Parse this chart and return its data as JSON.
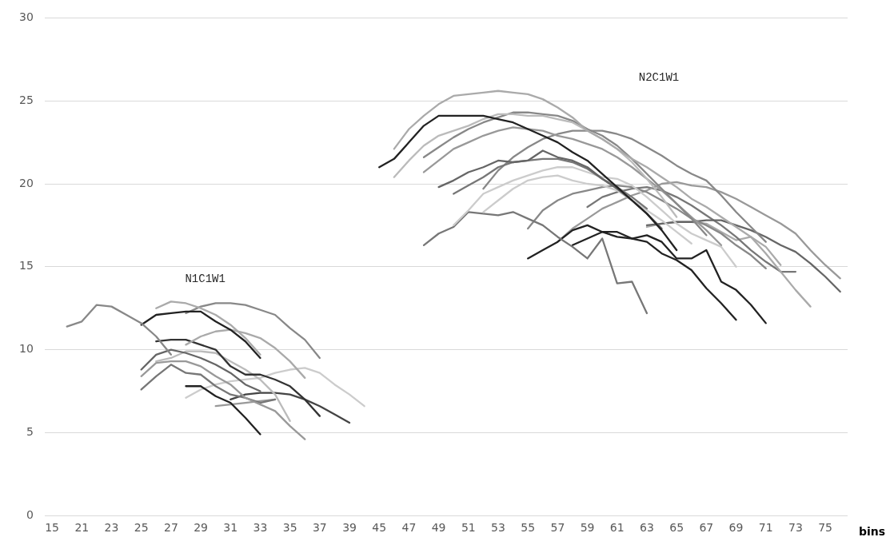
{
  "chart_data": {
    "type": "line",
    "xlabel": "bins",
    "categories": [
      "15",
      null,
      "21",
      null,
      "23",
      null,
      "25",
      null,
      "27",
      null,
      "29",
      null,
      "31",
      null,
      "33",
      null,
      "35",
      null,
      "37",
      null,
      "39",
      null,
      "45",
      null,
      "47",
      null,
      "49",
      null,
      "51",
      null,
      "53",
      null,
      "55",
      null,
      "57",
      null,
      "59",
      null,
      "61",
      null,
      "63",
      null,
      "65",
      null,
      "67",
      null,
      "69",
      null,
      "71",
      null,
      "73",
      null,
      "75",
      null
    ],
    "ylim": [
      0,
      30
    ],
    "yticks": [
      0,
      5,
      10,
      15,
      20,
      25,
      30
    ],
    "grid": "y",
    "marker": "none",
    "annotations": [
      "N1C1W1",
      "N2C1W1"
    ],
    "series": [
      {
        "color": "#888888",
        "values": [
          null,
          11.4,
          11.7,
          12.7,
          12.6,
          12.1,
          11.6,
          10.8,
          9.7,
          null,
          null,
          null,
          null,
          null,
          null,
          null,
          null,
          null,
          null,
          null,
          null,
          null,
          null,
          null,
          null,
          null,
          null,
          null,
          null,
          null,
          null,
          null,
          null,
          null,
          null,
          null,
          null,
          null,
          null,
          null,
          null,
          null,
          null,
          null,
          null,
          null,
          null,
          null,
          null,
          null,
          null,
          null,
          null,
          null
        ]
      },
      {
        "color": "#222222",
        "values": [
          null,
          null,
          null,
          null,
          null,
          null,
          11.5,
          12.1,
          12.2,
          12.3,
          12.3,
          11.7,
          11.2,
          10.5,
          9.5,
          null,
          null,
          null,
          null,
          null,
          null,
          null,
          null,
          null,
          null,
          null,
          null,
          null,
          null,
          null,
          null,
          null,
          null,
          null,
          null,
          null,
          null,
          null,
          null,
          null,
          null,
          null,
          null,
          null,
          null,
          null,
          null,
          null,
          null,
          null,
          null,
          null,
          null,
          null
        ]
      },
      {
        "color": "#aaaaaa",
        "values": [
          null,
          null,
          null,
          null,
          null,
          null,
          null,
          12.5,
          12.9,
          12.8,
          12.5,
          12.1,
          11.5,
          10.7,
          9.7,
          null,
          null,
          null,
          null,
          null,
          null,
          null,
          null,
          null,
          null,
          null,
          null,
          null,
          null,
          null,
          null,
          null,
          null,
          null,
          null,
          null,
          null,
          null,
          null,
          null,
          null,
          null,
          null,
          null,
          null,
          null,
          null,
          null,
          null,
          null,
          null,
          null,
          null,
          null
        ]
      },
      {
        "color": "#888888",
        "values": [
          null,
          null,
          null,
          null,
          null,
          null,
          null,
          null,
          null,
          12.2,
          12.6,
          12.8,
          12.8,
          12.7,
          12.4,
          12.1,
          11.3,
          10.6,
          9.5,
          null,
          null,
          null,
          null,
          null,
          null,
          null,
          null,
          null,
          null,
          null,
          null,
          null,
          null,
          null,
          null,
          null,
          null,
          null,
          null,
          null,
          null,
          null,
          null,
          null,
          null,
          null,
          null,
          null,
          null,
          null,
          null,
          null,
          null,
          null
        ]
      },
      {
        "color": "#aaaaaa",
        "values": [
          null,
          null,
          null,
          null,
          null,
          null,
          null,
          null,
          null,
          10.3,
          10.8,
          11.1,
          11.2,
          11.0,
          10.7,
          10.1,
          9.3,
          8.3,
          null,
          null,
          null,
          null,
          null,
          null,
          null,
          null,
          null,
          null,
          null,
          null,
          null,
          null,
          null,
          null,
          null,
          null,
          null,
          null,
          null,
          null,
          null,
          null,
          null,
          null,
          null,
          null,
          null,
          null,
          null,
          null,
          null,
          null,
          null,
          null
        ]
      },
      {
        "color": "#333333",
        "values": [
          null,
          null,
          null,
          null,
          null,
          null,
          null,
          10.5,
          10.6,
          10.6,
          10.3,
          10.0,
          9.0,
          8.5,
          8.5,
          8.2,
          7.8,
          7.0,
          6.0,
          null,
          null,
          null,
          null,
          null,
          null,
          null,
          null,
          null,
          null,
          null,
          null,
          null,
          null,
          null,
          null,
          null,
          null,
          null,
          null,
          null,
          null,
          null,
          null,
          null,
          null,
          null,
          null,
          null,
          null,
          null,
          null,
          null,
          null,
          null
        ]
      },
      {
        "color": "#666666",
        "values": [
          null,
          null,
          null,
          null,
          null,
          null,
          8.8,
          9.7,
          10.0,
          9.8,
          9.5,
          9.1,
          8.6,
          7.9,
          7.5,
          null,
          null,
          null,
          null,
          null,
          null,
          null,
          null,
          null,
          null,
          null,
          null,
          null,
          null,
          null,
          null,
          null,
          null,
          null,
          null,
          null,
          null,
          null,
          null,
          null,
          null,
          null,
          null,
          null,
          null,
          null,
          null,
          null,
          null,
          null,
          null,
          null,
          null,
          null
        ]
      },
      {
        "color": "#bbbbbb",
        "values": [
          null,
          null,
          null,
          null,
          null,
          null,
          null,
          9.3,
          9.5,
          9.9,
          9.9,
          9.8,
          9.3,
          8.8,
          8.2,
          7.3,
          5.7,
          null,
          null,
          null,
          null,
          null,
          null,
          null,
          null,
          null,
          null,
          null,
          null,
          null,
          null,
          null,
          null,
          null,
          null,
          null,
          null,
          null,
          null,
          null,
          null,
          null,
          null,
          null,
          null,
          null,
          null,
          null,
          null,
          null,
          null,
          null,
          null,
          null
        ]
      },
      {
        "color": "#999999",
        "values": [
          null,
          null,
          null,
          null,
          null,
          null,
          8.4,
          9.2,
          9.3,
          9.3,
          9.0,
          8.4,
          7.9,
          7.1,
          6.7,
          6.3,
          5.4,
          4.6,
          null,
          null,
          null,
          null,
          null,
          null,
          null,
          null,
          null,
          null,
          null,
          null,
          null,
          null,
          null,
          null,
          null,
          null,
          null,
          null,
          null,
          null,
          null,
          null,
          null,
          null,
          null,
          null,
          null,
          null,
          null,
          null,
          null,
          null,
          null,
          null
        ]
      },
      {
        "color": "#777777",
        "values": [
          null,
          null,
          null,
          null,
          null,
          null,
          7.6,
          8.4,
          9.1,
          8.6,
          8.5,
          7.8,
          7.3,
          7.1,
          6.8,
          7.0,
          null,
          null,
          null,
          null,
          null,
          null,
          null,
          null,
          null,
          null,
          null,
          null,
          null,
          null,
          null,
          null,
          null,
          null,
          null,
          null,
          null,
          null,
          null,
          null,
          null,
          null,
          null,
          null,
          null,
          null,
          null,
          null,
          null,
          null,
          null,
          null,
          null,
          null
        ]
      },
      {
        "color": "#222222",
        "values": [
          null,
          null,
          null,
          null,
          null,
          null,
          null,
          null,
          null,
          7.8,
          7.8,
          7.2,
          6.8,
          5.9,
          4.9,
          null,
          null,
          null,
          null,
          null,
          null,
          null,
          null,
          null,
          null,
          null,
          null,
          null,
          null,
          null,
          null,
          null,
          null,
          null,
          null,
          null,
          null,
          null,
          null,
          null,
          null,
          null,
          null,
          null,
          null,
          null,
          null,
          null,
          null,
          null,
          null,
          null,
          null,
          null
        ]
      },
      {
        "color": "#cccccc",
        "values": [
          null,
          null,
          null,
          null,
          null,
          null,
          null,
          null,
          null,
          7.1,
          7.6,
          7.9,
          8.1,
          8.2,
          8.3,
          8.6,
          8.8,
          8.9,
          8.6,
          7.9,
          7.3,
          6.6,
          null,
          null,
          null,
          null,
          null,
          null,
          null,
          null,
          null,
          null,
          null,
          null,
          null,
          null,
          null,
          null,
          null,
          null,
          null,
          null,
          null,
          null,
          null,
          null,
          null,
          null,
          null,
          null,
          null,
          null,
          null,
          null
        ]
      },
      {
        "color": "#999999",
        "values": [
          null,
          null,
          null,
          null,
          null,
          null,
          null,
          null,
          null,
          null,
          null,
          6.6,
          6.7,
          6.8,
          6.9,
          7.0,
          null,
          null,
          null,
          null,
          null,
          null,
          null,
          null,
          null,
          null,
          null,
          null,
          null,
          null,
          null,
          null,
          null,
          null,
          null,
          null,
          null,
          null,
          null,
          null,
          null,
          null,
          null,
          null,
          null,
          null,
          null,
          null,
          null,
          null,
          null,
          null,
          null,
          null
        ]
      },
      {
        "color": "#444444",
        "values": [
          null,
          null,
          null,
          null,
          null,
          null,
          null,
          null,
          null,
          null,
          null,
          null,
          7.0,
          7.3,
          7.4,
          7.4,
          7.3,
          7.0,
          6.6,
          6.1,
          5.6,
          null,
          null,
          null,
          null,
          null,
          null,
          null,
          null,
          null,
          null,
          null,
          null,
          null,
          null,
          null,
          null,
          null,
          null,
          null,
          null,
          null,
          null,
          null,
          null,
          null,
          null,
          null,
          null,
          null,
          null,
          null,
          null,
          null
        ]
      },
      {
        "color": "#222222",
        "values": [
          null,
          null,
          null,
          null,
          null,
          null,
          null,
          null,
          null,
          null,
          null,
          null,
          null,
          null,
          null,
          null,
          null,
          null,
          null,
          null,
          null,
          null,
          21.0,
          21.5,
          22.5,
          23.5,
          24.1,
          24.1,
          24.1,
          24.1,
          23.9,
          23.7,
          23.3,
          22.9,
          22.5,
          21.9,
          21.4,
          20.6,
          19.8,
          19.0,
          18.2,
          17.2,
          16.0,
          null,
          null,
          null,
          null,
          null,
          null,
          null,
          null,
          null,
          null,
          null
        ]
      },
      {
        "color": "#aaaaaa",
        "values": [
          null,
          null,
          null,
          null,
          null,
          null,
          null,
          null,
          null,
          null,
          null,
          null,
          null,
          null,
          null,
          null,
          null,
          null,
          null,
          null,
          null,
          null,
          null,
          22.1,
          23.3,
          24.1,
          24.8,
          25.3,
          25.4,
          25.5,
          25.6,
          25.5,
          25.4,
          25.1,
          24.6,
          24.0,
          23.2,
          22.7,
          22.1,
          21.5,
          21.0,
          20.4,
          19.8,
          19.1,
          18.6,
          18.0,
          17.4,
          16.8,
          15.8,
          14.7,
          13.6,
          12.6,
          null,
          null
        ]
      },
      {
        "color": "#bbbbbb",
        "values": [
          null,
          null,
          null,
          null,
          null,
          null,
          null,
          null,
          null,
          null,
          null,
          null,
          null,
          null,
          null,
          null,
          null,
          null,
          null,
          null,
          null,
          null,
          null,
          20.4,
          21.4,
          22.3,
          22.9,
          23.2,
          23.5,
          23.9,
          24.2,
          24.2,
          24.1,
          24.1,
          23.9,
          23.7,
          23.2,
          22.7,
          22.1,
          21.3,
          20.3,
          19.2,
          18.0,
          null,
          null,
          null,
          null,
          null,
          null,
          null,
          null,
          null,
          null,
          null
        ]
      },
      {
        "color": "#888888",
        "values": [
          null,
          null,
          null,
          null,
          null,
          null,
          null,
          null,
          null,
          null,
          null,
          null,
          null,
          null,
          null,
          null,
          null,
          null,
          null,
          null,
          null,
          null,
          null,
          null,
          null,
          21.6,
          22.2,
          22.8,
          23.3,
          23.7,
          24.0,
          24.3,
          24.3,
          24.2,
          24.1,
          23.8,
          23.3,
          22.9,
          22.3,
          21.5,
          20.6,
          19.7,
          18.8,
          17.9,
          16.9,
          null,
          null,
          null,
          null,
          null,
          null,
          null,
          null,
          null
        ]
      },
      {
        "color": "#999999",
        "values": [
          null,
          null,
          null,
          null,
          null,
          null,
          null,
          null,
          null,
          null,
          null,
          null,
          null,
          null,
          null,
          null,
          null,
          null,
          null,
          null,
          null,
          null,
          null,
          null,
          null,
          20.7,
          21.4,
          22.1,
          22.5,
          22.9,
          23.2,
          23.4,
          23.3,
          23.2,
          22.9,
          22.7,
          22.4,
          22.1,
          21.6,
          21.0,
          20.3,
          19.6,
          18.8,
          18.0,
          17.2,
          16.3,
          null,
          null,
          null,
          null,
          null,
          null,
          null,
          null
        ]
      },
      {
        "color": "#666666",
        "values": [
          null,
          null,
          null,
          null,
          null,
          null,
          null,
          null,
          null,
          null,
          null,
          null,
          null,
          null,
          null,
          null,
          null,
          null,
          null,
          null,
          null,
          null,
          null,
          null,
          null,
          null,
          19.8,
          20.2,
          20.7,
          21.0,
          21.4,
          21.3,
          21.4,
          22.0,
          21.6,
          21.4,
          21.0,
          20.3,
          19.7,
          19.0,
          18.2,
          17.3,
          null,
          null,
          null,
          null,
          null,
          null,
          null,
          null,
          null,
          null,
          null,
          null
        ]
      },
      {
        "color": "#777777",
        "values": [
          null,
          null,
          null,
          null,
          null,
          null,
          null,
          null,
          null,
          null,
          null,
          null,
          null,
          null,
          null,
          null,
          null,
          null,
          null,
          null,
          null,
          null,
          null,
          null,
          null,
          null,
          null,
          19.4,
          19.9,
          20.4,
          21.0,
          21.3,
          21.4,
          21.5,
          21.5,
          21.3,
          20.9,
          20.3,
          19.8,
          19.2,
          18.5,
          null,
          null,
          null,
          null,
          null,
          null,
          null,
          null,
          null,
          null,
          null,
          null,
          null
        ]
      },
      {
        "color": "#888888",
        "values": [
          null,
          null,
          null,
          null,
          null,
          null,
          null,
          null,
          null,
          null,
          null,
          null,
          null,
          null,
          null,
          null,
          null,
          null,
          null,
          null,
          null,
          null,
          null,
          null,
          null,
          null,
          null,
          null,
          null,
          19.7,
          20.8,
          21.6,
          22.2,
          22.7,
          23.0,
          23.2,
          23.2,
          23.2,
          23.0,
          22.7,
          22.2,
          21.7,
          21.1,
          20.6,
          20.2,
          19.3,
          18.3,
          17.4,
          16.5,
          null,
          null,
          null,
          null,
          null
        ]
      },
      {
        "color": "#cccccc",
        "values": [
          null,
          null,
          null,
          null,
          null,
          null,
          null,
          null,
          null,
          null,
          null,
          null,
          null,
          null,
          null,
          null,
          null,
          null,
          null,
          null,
          null,
          null,
          null,
          null,
          null,
          null,
          null,
          17.5,
          18.4,
          19.4,
          19.8,
          20.2,
          20.5,
          20.8,
          21.0,
          21.0,
          20.7,
          20.4,
          20.3,
          19.9,
          19.2,
          18.4,
          17.6,
          17.0,
          16.6,
          16.2,
          15.0,
          null,
          null,
          null,
          null,
          null,
          null,
          null
        ]
      },
      {
        "color": "#cccccc",
        "values": [
          null,
          null,
          null,
          null,
          null,
          null,
          null,
          null,
          null,
          null,
          null,
          null,
          null,
          null,
          null,
          null,
          null,
          null,
          null,
          null,
          null,
          null,
          null,
          null,
          null,
          null,
          null,
          null,
          null,
          18.3,
          19.0,
          19.7,
          20.2,
          20.4,
          20.5,
          20.2,
          20.0,
          19.9,
          19.6,
          19.0,
          18.4,
          17.8,
          17.1,
          16.4,
          null,
          null,
          null,
          null,
          null,
          null,
          null,
          null,
          null,
          null
        ]
      },
      {
        "color": "#777777",
        "values": [
          null,
          null,
          null,
          null,
          null,
          null,
          null,
          null,
          null,
          null,
          null,
          null,
          null,
          null,
          null,
          null,
          null,
          null,
          null,
          null,
          null,
          null,
          null,
          null,
          null,
          16.3,
          17.0,
          17.4,
          18.3,
          18.2,
          18.1,
          18.3,
          17.9,
          17.5,
          16.8,
          16.2,
          15.5,
          16.7,
          14.0,
          14.1,
          12.2,
          null,
          null,
          null,
          null,
          null,
          null,
          null,
          null,
          null,
          null,
          null,
          null,
          null
        ]
      },
      {
        "color": "#222222",
        "values": [
          null,
          null,
          null,
          null,
          null,
          null,
          null,
          null,
          null,
          null,
          null,
          null,
          null,
          null,
          null,
          null,
          null,
          null,
          null,
          null,
          null,
          null,
          null,
          null,
          null,
          null,
          null,
          null,
          null,
          null,
          null,
          null,
          15.5,
          16.0,
          16.5,
          17.2,
          17.5,
          17.1,
          16.8,
          16.7,
          16.5,
          15.8,
          15.4,
          14.8,
          13.7,
          12.8,
          11.8,
          null,
          null,
          null,
          null,
          null,
          null,
          null
        ]
      },
      {
        "color": "#222222",
        "values": [
          null,
          null,
          null,
          null,
          null,
          null,
          null,
          null,
          null,
          null,
          null,
          null,
          null,
          null,
          null,
          null,
          null,
          null,
          null,
          null,
          null,
          null,
          null,
          null,
          null,
          null,
          null,
          null,
          null,
          null,
          null,
          null,
          null,
          null,
          null,
          16.3,
          16.7,
          17.1,
          17.1,
          16.7,
          16.9,
          16.5,
          15.5,
          15.5,
          16.0,
          14.1,
          13.6,
          12.7,
          11.6,
          null,
          null,
          null,
          null,
          null
        ]
      },
      {
        "color": "#888888",
        "values": [
          null,
          null,
          null,
          null,
          null,
          null,
          null,
          null,
          null,
          null,
          null,
          null,
          null,
          null,
          null,
          null,
          null,
          null,
          null,
          null,
          null,
          null,
          null,
          null,
          null,
          null,
          null,
          null,
          null,
          null,
          null,
          null,
          17.3,
          18.4,
          19.0,
          19.4,
          19.6,
          19.8,
          19.9,
          19.8,
          19.5,
          19.0,
          18.5,
          17.9,
          17.5,
          17.0,
          16.3,
          15.7,
          14.9,
          null,
          null,
          null,
          null,
          null
        ]
      },
      {
        "color": "#999999",
        "values": [
          null,
          null,
          null,
          null,
          null,
          null,
          null,
          null,
          null,
          null,
          null,
          null,
          null,
          null,
          null,
          null,
          null,
          null,
          null,
          null,
          null,
          null,
          null,
          null,
          null,
          null,
          null,
          null,
          null,
          null,
          null,
          null,
          null,
          null,
          16.5,
          17.3,
          17.9,
          18.5,
          18.9,
          19.3,
          19.6,
          20.0,
          20.1,
          19.9,
          19.8,
          19.5,
          19.1,
          18.6,
          18.1,
          17.6,
          17.0,
          16.0,
          15.1,
          14.3
        ]
      },
      {
        "color": "#666666",
        "values": [
          null,
          null,
          null,
          null,
          null,
          null,
          null,
          null,
          null,
          null,
          null,
          null,
          null,
          null,
          null,
          null,
          null,
          null,
          null,
          null,
          null,
          null,
          null,
          null,
          null,
          null,
          null,
          null,
          null,
          null,
          null,
          null,
          null,
          null,
          null,
          null,
          null,
          null,
          null,
          null,
          17.5,
          17.6,
          17.7,
          17.7,
          17.8,
          17.8,
          17.5,
          17.2,
          16.8,
          16.3,
          15.9,
          15.2,
          14.4,
          13.5
        ]
      },
      {
        "color": "#777777",
        "values": [
          null,
          null,
          null,
          null,
          null,
          null,
          null,
          null,
          null,
          null,
          null,
          null,
          null,
          null,
          null,
          null,
          null,
          null,
          null,
          null,
          null,
          null,
          null,
          null,
          null,
          null,
          null,
          null,
          null,
          null,
          null,
          null,
          null,
          null,
          null,
          null,
          18.6,
          19.2,
          19.5,
          19.7,
          19.8,
          19.6,
          19.2,
          18.7,
          18.1,
          17.5,
          16.8,
          16.0,
          15.3,
          14.7,
          14.7,
          null,
          null,
          null
        ]
      },
      {
        "color": "#aaaaaa",
        "values": [
          null,
          null,
          null,
          null,
          null,
          null,
          null,
          null,
          null,
          null,
          null,
          null,
          null,
          null,
          null,
          null,
          null,
          null,
          null,
          null,
          null,
          null,
          null,
          null,
          null,
          null,
          null,
          null,
          null,
          null,
          null,
          null,
          null,
          null,
          null,
          null,
          null,
          null,
          null,
          null,
          17.4,
          17.6,
          17.7,
          17.7,
          17.6,
          17.1,
          16.6,
          16.8,
          16.2,
          15.1,
          null,
          null,
          null,
          null
        ]
      }
    ]
  }
}
